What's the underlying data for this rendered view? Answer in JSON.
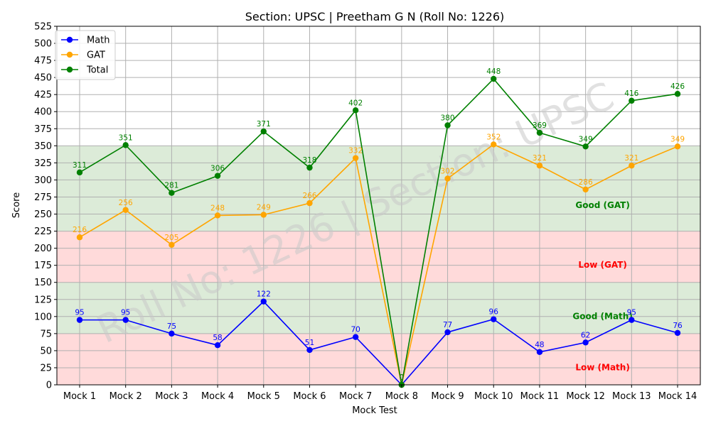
{
  "chart_data": {
    "type": "line",
    "title": "Section: UPSC | Preetham G N (Roll No: 1226)",
    "xlabel": "Mock Test",
    "ylabel": "Score",
    "categories": [
      "Mock 1",
      "Mock 2",
      "Mock 3",
      "Mock 4",
      "Mock 5",
      "Mock 6",
      "Mock 7",
      "Mock 8",
      "Mock 9",
      "Mock 10",
      "Mock 11",
      "Mock 12",
      "Mock 13",
      "Mock 14"
    ],
    "ylim": [
      0,
      525
    ],
    "ytick_step": 25,
    "grid": true,
    "legend_position": "top-left",
    "series": [
      {
        "name": "Math",
        "color": "#0000ff",
        "values": [
          95,
          95,
          75,
          58,
          122,
          51,
          70,
          0,
          77,
          96,
          48,
          62,
          95,
          76
        ]
      },
      {
        "name": "GAT",
        "color": "#ffa500",
        "values": [
          216,
          256,
          205,
          248,
          249,
          266,
          332,
          0,
          302,
          352,
          321,
          286,
          321,
          349
        ]
      },
      {
        "name": "Total",
        "color": "#008000",
        "values": [
          311,
          351,
          281,
          306,
          371,
          318,
          402,
          0,
          380,
          448,
          369,
          349,
          416,
          426
        ]
      }
    ],
    "bands": [
      {
        "label": "Low (Math)",
        "from": 0,
        "to": 75,
        "color": "#ffdada",
        "text_color": "#ff0000"
      },
      {
        "label": "Good (Math)",
        "from": 75,
        "to": 150,
        "color": "#dcebd8",
        "text_color": "#008000"
      },
      {
        "label": "Low (GAT)",
        "from": 150,
        "to": 225,
        "color": "#ffdada",
        "text_color": "#ff0000"
      },
      {
        "label": "Good (GAT)",
        "from": 225,
        "to": 350,
        "color": "#dcebd8",
        "text_color": "#008000"
      }
    ],
    "watermark": "Roll No: 1226 | Section: UPSC"
  }
}
